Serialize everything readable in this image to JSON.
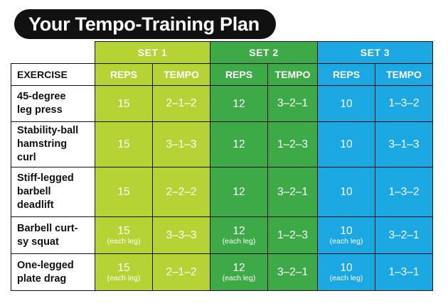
{
  "title": "Your Tempo-Training Plan",
  "header": {
    "exercise_label": "EXERCISE",
    "sets": [
      "SET 1",
      "SET 2",
      "SET 3"
    ],
    "reps_label": "REPS",
    "tempo_label": "TEMPO"
  },
  "colors": {
    "set1": "#b5d334",
    "set2": "#3daa47",
    "set3": "#1ba8e2",
    "title_bg": "#111111"
  },
  "rows": [
    {
      "exercise": [
        "45-degree",
        "leg press"
      ],
      "cells": [
        {
          "reps": "15",
          "note": "",
          "tempo": "2–1–2"
        },
        {
          "reps": "12",
          "note": "",
          "tempo": "3–2–1"
        },
        {
          "reps": "10",
          "note": "",
          "tempo": "1–3–2"
        }
      ]
    },
    {
      "exercise": [
        "Stability-ball",
        "hamstring",
        "curl"
      ],
      "cells": [
        {
          "reps": "15",
          "note": "",
          "tempo": "3–1–3"
        },
        {
          "reps": "12",
          "note": "",
          "tempo": "1–2–3"
        },
        {
          "reps": "10",
          "note": "",
          "tempo": "3–1–3"
        }
      ]
    },
    {
      "exercise": [
        "Stiff-legged",
        "barbell",
        "deadlift"
      ],
      "cells": [
        {
          "reps": "15",
          "note": "",
          "tempo": "2–2–2"
        },
        {
          "reps": "12",
          "note": "",
          "tempo": "3–2–1"
        },
        {
          "reps": "10",
          "note": "",
          "tempo": "1–3–2"
        }
      ]
    },
    {
      "exercise": [
        "Barbell curt-",
        "sy squat"
      ],
      "cells": [
        {
          "reps": "15",
          "note": "(each leg)",
          "tempo": "3–3–3"
        },
        {
          "reps": "12",
          "note": "(each leg)",
          "tempo": "1–2–3"
        },
        {
          "reps": "10",
          "note": "(each leg)",
          "tempo": "3–2–1"
        }
      ]
    },
    {
      "exercise": [
        "One-legged",
        "plate drag"
      ],
      "cells": [
        {
          "reps": "15",
          "note": "(each leg)",
          "tempo": "2–1–2"
        },
        {
          "reps": "12",
          "note": "(each leg)",
          "tempo": "3–2–1"
        },
        {
          "reps": "10",
          "note": "(each leg)",
          "tempo": "1–3–1"
        }
      ]
    }
  ]
}
